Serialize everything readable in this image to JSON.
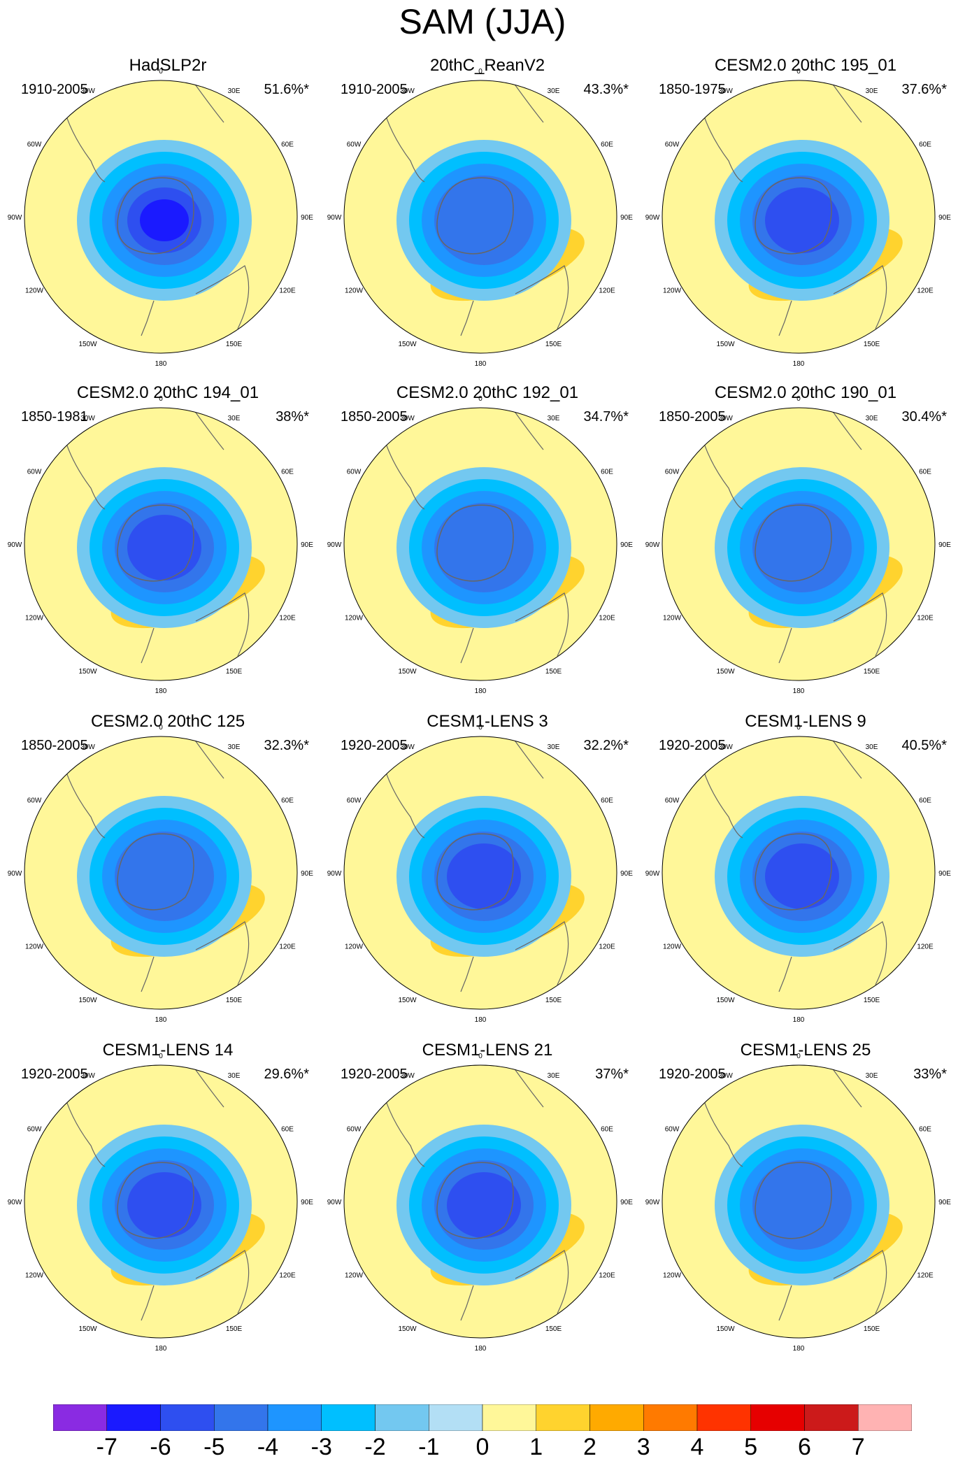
{
  "title": "SAM (JJA)",
  "chart_data": {
    "type": "polar-stereographic-contour-maps",
    "title": "SAM (JJA)",
    "projection": "south-polar stereographic",
    "longitude_labels": [
      "0",
      "30E",
      "60E",
      "90E",
      "120E",
      "150E",
      "180",
      "150W",
      "120W",
      "90W",
      "60W",
      "30W"
    ],
    "colorbar": {
      "labels": [
        "-7",
        "-6",
        "-5",
        "-4",
        "-3",
        "-2",
        "-1",
        "0",
        "1",
        "2",
        "3",
        "4",
        "5",
        "6",
        "7"
      ],
      "colors": [
        "#8a2be2",
        "#1a1aff",
        "#2e4ff0",
        "#3375eb",
        "#1e95ff",
        "#00bfff",
        "#73c8f0",
        "#b3dff5",
        "#fff799",
        "#ffd32e",
        "#ffaa00",
        "#ff7a00",
        "#ff3300",
        "#e60000",
        "#cc1a1a",
        "#ffb3b3"
      ]
    },
    "panels": [
      {
        "title": "HadSLP2r",
        "period": "1910-2005",
        "variance": "51.6%*",
        "minimum": -6,
        "maximum": 0
      },
      {
        "title": "20thC_ReanV2",
        "period": "1910-2005",
        "variance": "43.3%*",
        "minimum": -4,
        "maximum": 2
      },
      {
        "title": "CESM2.0 20thC 195_01",
        "period": "1850-1975",
        "variance": "37.6%*",
        "minimum": -5,
        "maximum": 3
      },
      {
        "title": "CESM2.0 20thC 194_01",
        "period": "1850-1981",
        "variance": "38%*",
        "minimum": -5,
        "maximum": 3
      },
      {
        "title": "CESM2.0 20thC 192_01",
        "period": "1850-2005",
        "variance": "34.7%*",
        "minimum": -4,
        "maximum": 3
      },
      {
        "title": "CESM2.0 20thC 190_01",
        "period": "1850-2005",
        "variance": "30.4%*",
        "minimum": -4,
        "maximum": 2
      },
      {
        "title": "CESM2.0 20thC 125",
        "period": "1850-2005",
        "variance": "32.3%*",
        "minimum": -4,
        "maximum": 2
      },
      {
        "title": "CESM1-LENS 3",
        "period": "1920-2005",
        "variance": "32.2%*",
        "minimum": -5,
        "maximum": 2
      },
      {
        "title": "CESM1-LENS 9",
        "period": "1920-2005",
        "variance": "40.5%*",
        "minimum": -5,
        "maximum": 1
      },
      {
        "title": "CESM1-LENS 14",
        "period": "1920-2005",
        "variance": "29.6%*",
        "minimum": -5,
        "maximum": 2
      },
      {
        "title": "CESM1-LENS 21",
        "period": "1920-2005",
        "variance": "37%*",
        "minimum": -5,
        "maximum": 2
      },
      {
        "title": "CESM1-LENS 25",
        "period": "1920-2005",
        "variance": "33%*",
        "minimum": -4,
        "maximum": 2
      }
    ]
  }
}
